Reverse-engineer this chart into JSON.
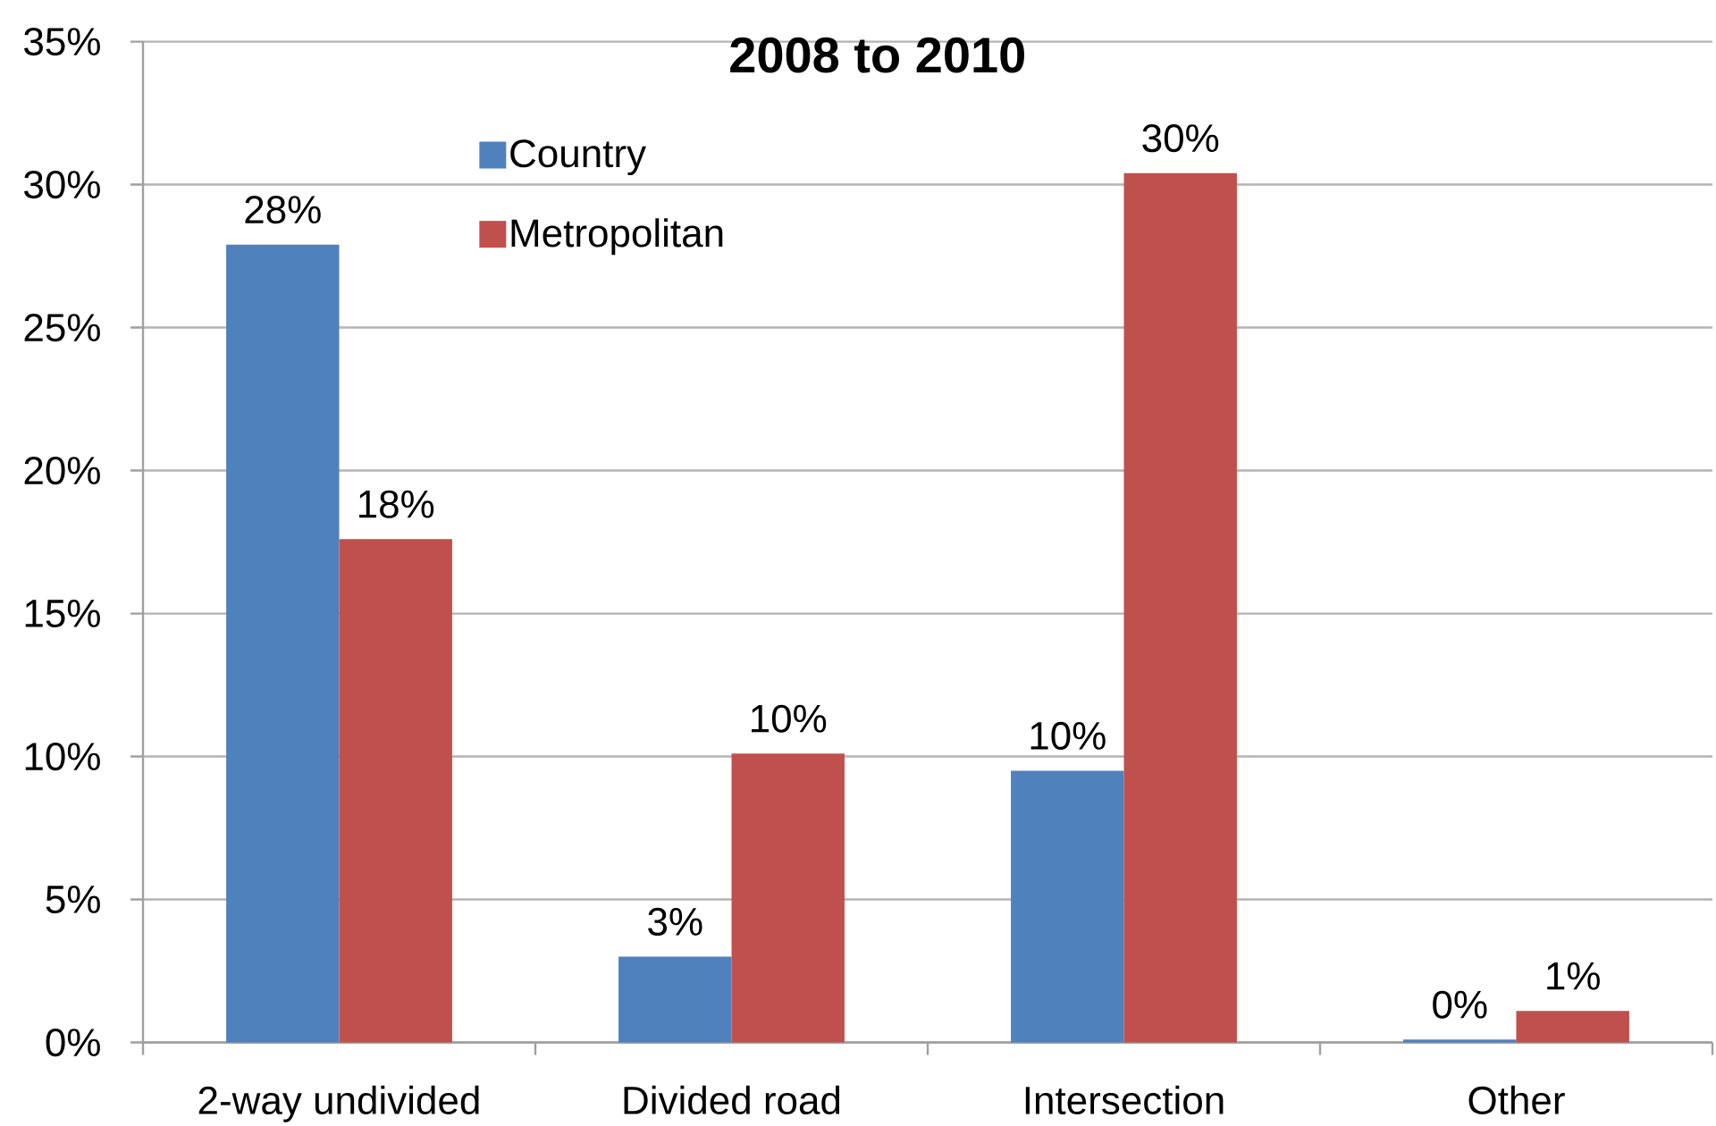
{
  "chart_data": {
    "type": "bar",
    "title": "2008 to 2010",
    "categories": [
      "2-way undivided",
      "Divided road",
      "Intersection",
      "Other"
    ],
    "series": [
      {
        "name": "Country",
        "color": "#4f81bd",
        "values": [
          27.9,
          3.0,
          9.5,
          0.1
        ],
        "value_labels": [
          "28%",
          "3%",
          "10%",
          "0%"
        ]
      },
      {
        "name": "Metropolitan",
        "color": "#c0504d",
        "values": [
          17.6,
          10.1,
          30.4,
          1.1
        ],
        "value_labels": [
          "18%",
          "10%",
          "30%",
          "1%"
        ]
      }
    ],
    "ylim": [
      0,
      35
    ],
    "yticks": [
      {
        "value": 0,
        "label": "0%"
      },
      {
        "value": 5,
        "label": "5%"
      },
      {
        "value": 10,
        "label": "10%"
      },
      {
        "value": 15,
        "label": "15%"
      },
      {
        "value": 20,
        "label": "20%"
      },
      {
        "value": 25,
        "label": "25%"
      },
      {
        "value": 30,
        "label": "30%"
      },
      {
        "value": 35,
        "label": "35%"
      }
    ],
    "grid": "y",
    "legend": "top left"
  }
}
